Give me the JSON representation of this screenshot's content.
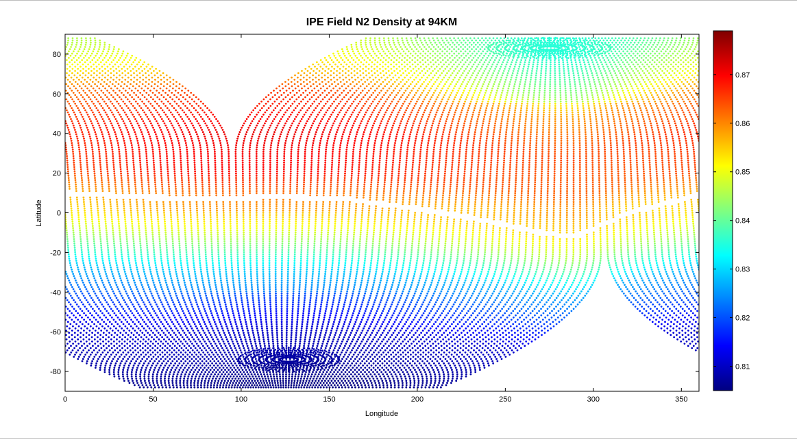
{
  "chart_data": {
    "type": "scatter",
    "title": "IPE Field N2 Density at 94KM",
    "xlabel": "Longitude",
    "ylabel": "Latitude",
    "xlim": [
      0,
      360
    ],
    "ylim": [
      -90,
      90
    ],
    "xticks": [
      "0",
      "50",
      "100",
      "150",
      "200",
      "250",
      "300",
      "350"
    ],
    "yticks": [
      "80",
      "60",
      "40",
      "20",
      "0",
      "-20",
      "-40",
      "-60",
      "-80"
    ],
    "grid": false,
    "colormap": "jet",
    "colorbar": {
      "range": [
        0.805,
        0.879
      ],
      "ticks": [
        "0.81",
        "0.82",
        "0.83",
        "0.84",
        "0.85",
        "0.86",
        "0.87"
      ]
    },
    "field_lines": {
      "southern_pole": {
        "lon": 127,
        "lat": -74
      },
      "northern_pole": {
        "lon": 275,
        "lat": 83
      },
      "dip_equator": [
        {
          "lon": 0,
          "lat": 10
        },
        {
          "lon": 40,
          "lat": 8
        },
        {
          "lon": 80,
          "lat": 7
        },
        {
          "lon": 120,
          "lat": 8
        },
        {
          "lon": 160,
          "lat": 7
        },
        {
          "lon": 200,
          "lat": 2
        },
        {
          "lon": 240,
          "lat": -4
        },
        {
          "lon": 270,
          "lat": -10
        },
        {
          "lon": 290,
          "lat": -12
        },
        {
          "lon": 320,
          "lat": 0
        },
        {
          "lon": 360,
          "lat": 9
        }
      ]
    },
    "density_profile": [
      {
        "lat": 90,
        "value": 0.845
      },
      {
        "lat": 80,
        "value": 0.848
      },
      {
        "lat": 70,
        "value": 0.853
      },
      {
        "lat": 60,
        "value": 0.862
      },
      {
        "lat": 40,
        "value": 0.868
      },
      {
        "lat": 20,
        "value": 0.866
      },
      {
        "lat": 8,
        "value": 0.858
      },
      {
        "lat": 0,
        "value": 0.855
      },
      {
        "lat": -10,
        "value": 0.848
      },
      {
        "lat": -20,
        "value": 0.838
      },
      {
        "lat": -30,
        "value": 0.828
      },
      {
        "lat": -45,
        "value": 0.82
      },
      {
        "lat": -60,
        "value": 0.812
      },
      {
        "lat": -90,
        "value": 0.806
      }
    ]
  },
  "colors": {
    "background": "#ffffff",
    "axis": "#000000",
    "frame_rule": "#bdbdbd"
  }
}
